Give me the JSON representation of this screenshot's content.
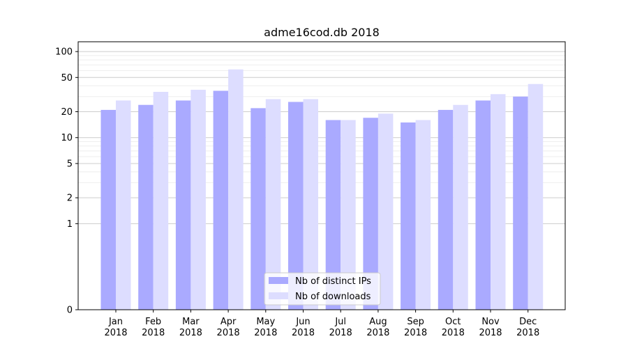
{
  "chart_data": {
    "type": "bar",
    "title": "adme16cod.db 2018",
    "xlabel": "",
    "ylabel": "",
    "yscale": "symlog",
    "ylim": [
      0,
      130
    ],
    "yticks": [
      0,
      1,
      2,
      5,
      10,
      20,
      50,
      100
    ],
    "ytick_labels": [
      "0",
      "1",
      "2",
      "5",
      "10",
      "20",
      "50",
      "100"
    ],
    "categories": [
      {
        "month": "Jan",
        "year": "2018"
      },
      {
        "month": "Feb",
        "year": "2018"
      },
      {
        "month": "Mar",
        "year": "2018"
      },
      {
        "month": "Apr",
        "year": "2018"
      },
      {
        "month": "May",
        "year": "2018"
      },
      {
        "month": "Jun",
        "year": "2018"
      },
      {
        "month": "Jul",
        "year": "2018"
      },
      {
        "month": "Aug",
        "year": "2018"
      },
      {
        "month": "Sep",
        "year": "2018"
      },
      {
        "month": "Oct",
        "year": "2018"
      },
      {
        "month": "Nov",
        "year": "2018"
      },
      {
        "month": "Dec",
        "year": "2018"
      }
    ],
    "series": [
      {
        "name": "Nb of distinct IPs",
        "color": "#aaaaff",
        "values": [
          21,
          24,
          27,
          35,
          22,
          26,
          16,
          17,
          15,
          21,
          27,
          30
        ]
      },
      {
        "name": "Nb of downloads",
        "color": "#ddddff",
        "values": [
          27,
          34,
          36,
          62,
          28,
          28,
          16,
          19,
          16,
          24,
          32,
          42
        ]
      }
    ],
    "legend": {
      "position": "bottom-center"
    },
    "grid": "major and minor horizontal"
  }
}
